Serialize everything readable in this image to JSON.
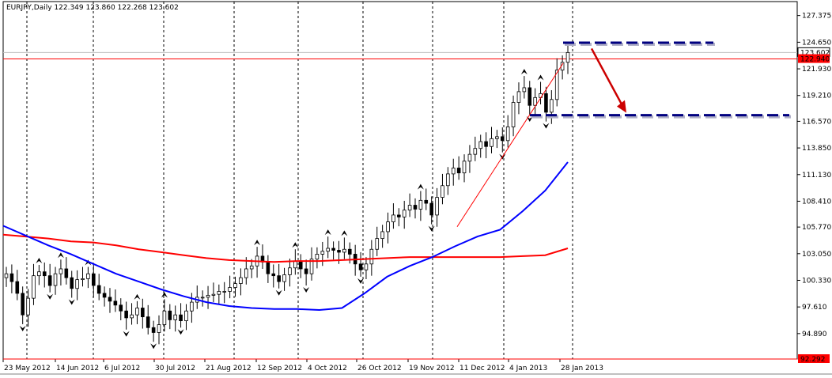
{
  "chart_data": {
    "type": "candlestick",
    "symbol": "EURJPY,Daily",
    "ohlc": [
      "122.349",
      "123.860",
      "122.268",
      "123.602"
    ],
    "ylim": [
      92.292,
      128.8
    ],
    "y_ticks": [
      127.375,
      124.65,
      121.93,
      119.21,
      116.57,
      113.85,
      111.13,
      108.41,
      105.77,
      103.05,
      100.33,
      97.61,
      94.89
    ],
    "y_tick_labels": [
      "127.375",
      "124.650",
      "121.930",
      "119.210",
      "116.570",
      "113.850",
      "111.130",
      "108.410",
      "105.770",
      "103.050",
      "100.330",
      "97.610",
      "94.890"
    ],
    "x_labels": [
      "23 May 2012",
      "14 Jun 2012",
      "6 Jul 2012",
      "30 Jul 2012",
      "21 Aug 2012",
      "12 Sep 2012",
      "4 Oct 2012",
      "26 Oct 2012",
      "19 Nov 2012",
      "11 Dec 2012",
      "4 Jan 2013",
      "28 Jan 2013"
    ],
    "price_lines": [
      {
        "value": 123.602,
        "label": "123.602",
        "color": "#c0c0c0"
      },
      {
        "value": 122.94,
        "label": "122.940",
        "color": "#ff0000"
      },
      {
        "value": 92.292,
        "label": "92.292",
        "color": "#ff0000"
      }
    ],
    "ma_fast": {
      "color": "#0000ff",
      "values": [
        105.9,
        104.9,
        103.9,
        103.0,
        102.0,
        101.0,
        100.2,
        99.4,
        98.7,
        98.1,
        97.7,
        97.5,
        97.4,
        97.4,
        97.3,
        97.5,
        99.0,
        100.7,
        101.8,
        102.7,
        103.8,
        104.8,
        105.5,
        107.4,
        109.5,
        112.4
      ]
    },
    "ma_slow": {
      "color": "#ff0000",
      "values": [
        105.0,
        104.8,
        104.6,
        104.3,
        104.2,
        103.9,
        103.5,
        103.2,
        102.9,
        102.6,
        102.4,
        102.3,
        102.2,
        102.3,
        102.3,
        102.4,
        102.5,
        102.6,
        102.7,
        102.7,
        102.7,
        102.7,
        102.7,
        102.8,
        102.9,
        103.6
      ]
    },
    "candle_closes": [
      101.0,
      100.2,
      99.0,
      96.8,
      98.5,
      100.8,
      101.2,
      100.8,
      99.8,
      101.0,
      101.5,
      100.6,
      99.5,
      100.4,
      100.5,
      101.0,
      99.8,
      99.0,
      98.6,
      98.2,
      97.8,
      97.2,
      96.5,
      96.8,
      97.5,
      96.6,
      95.5,
      95.0,
      95.8,
      97.2,
      96.3,
      96.8,
      96.2,
      97.2,
      98.1,
      98.6,
      98.6,
      98.8,
      98.9,
      99.2,
      99.2,
      99.6,
      100.0,
      100.6,
      101.5,
      101.8,
      102.8,
      102.2,
      101.0,
      100.8,
      100.2,
      100.9,
      101.6,
      102.3,
      101.5,
      101.0,
      102.5,
      103.0,
      103.3,
      103.6,
      103.4,
      103.2,
      103.5,
      103.0,
      102.0,
      101.4,
      102.0,
      103.5,
      104.6,
      105.3,
      106.3,
      107.0,
      106.8,
      107.5,
      108.0,
      107.6,
      108.5,
      108.2,
      107.0,
      108.8,
      110.0,
      111.2,
      111.8,
      111.3,
      112.5,
      113.2,
      113.8,
      114.5,
      114.0,
      114.8,
      115.0,
      114.6,
      116.0,
      118.5,
      119.6,
      120.0,
      118.2,
      119.0,
      119.4,
      117.5,
      118.8,
      121.8,
      122.6,
      123.6
    ],
    "annotations": [
      {
        "type": "hline-dashed",
        "value": 124.6,
        "color": "#000080"
      },
      {
        "type": "hline-dashed",
        "value": 117.2,
        "color": "#000080"
      },
      {
        "type": "arrow",
        "from": 124.0,
        "to": 117.2,
        "color": "#cc0000"
      },
      {
        "type": "trendline",
        "from": 105.8,
        "to": 122.5,
        "color": "#ff0000"
      }
    ]
  }
}
